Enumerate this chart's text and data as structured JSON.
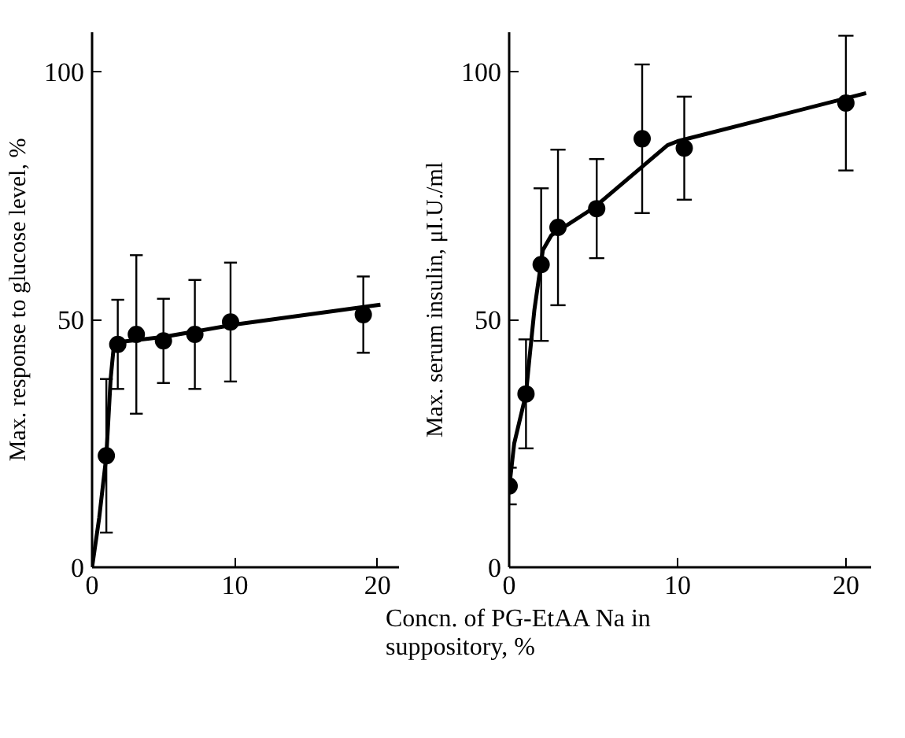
{
  "chart_data": [
    {
      "type": "scatter",
      "xlabel": "Concn. of PG-EtAA Na in suppository, %",
      "ylabel": "Max. response to glucose level, %",
      "xlim": [
        0,
        21.5
      ],
      "ylim": [
        0,
        108
      ],
      "xticks": [
        0,
        10,
        20
      ],
      "yticks": [
        0,
        50,
        100
      ],
      "grid": false,
      "series": [
        {
          "marker": "circle",
          "color": "#000000",
          "x": [
            1.0,
            1.8,
            3.1,
            5.0,
            7.2,
            9.7,
            19.0
          ],
          "values": [
            22.5,
            45,
            47,
            45.7,
            47,
            49.5,
            51
          ],
          "errors": [
            15.5,
            9,
            16,
            8.5,
            11,
            12,
            7.7
          ]
        },
        {
          "type": "line",
          "color": "#000000",
          "x": [
            0,
            0.5,
            1,
            1.3,
            1.5,
            2,
            5,
            10,
            20.2
          ],
          "values": [
            0,
            10,
            22.5,
            38,
            44,
            45.5,
            46.5,
            49,
            53
          ]
        }
      ]
    },
    {
      "type": "scatter",
      "ylabel": "Max. serum insulin, μI.U./ml",
      "xlim": [
        0,
        21.5
      ],
      "ylim": [
        0,
        108
      ],
      "xticks": [
        0,
        10,
        20
      ],
      "yticks": [
        0,
        50,
        100
      ],
      "grid": false,
      "series": [
        {
          "marker": "circle",
          "color": "#000000",
          "x": [
            0,
            1.0,
            1.9,
            2.9,
            5.2,
            7.9,
            10.4,
            20
          ],
          "values": [
            16.4,
            35,
            61.1,
            68.6,
            72.4,
            86.5,
            84.6,
            93.7
          ],
          "errors": [
            3.7,
            11,
            15.4,
            15.7,
            10,
            15,
            10.4,
            13.6
          ]
        },
        {
          "type": "line",
          "color": "#000000",
          "x": [
            0,
            0.3,
            1,
            1.2,
            1.5,
            2,
            2.5,
            5,
            9.4,
            10,
            21.2
          ],
          "values": [
            16,
            25,
            35,
            42,
            52,
            64,
            67,
            72.5,
            85.2,
            86,
            95.7
          ]
        }
      ]
    }
  ]
}
